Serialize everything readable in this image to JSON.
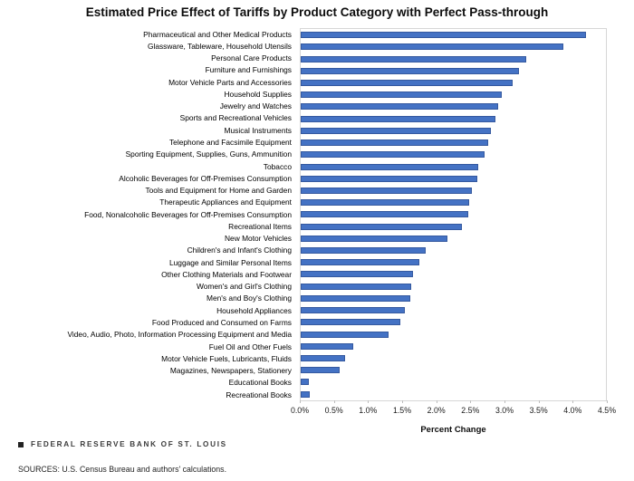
{
  "title": "Estimated Price Effect of Tariffs by Product Category with Perfect Pass-through",
  "chart_data": {
    "type": "bar",
    "orientation": "horizontal",
    "categories": [
      "Pharmaceutical and Other Medical Products",
      "Glassware, Tableware, Household Utensils",
      "Personal Care Products",
      "Furniture and Furnishings",
      "Motor Vehicle Parts and Accessories",
      "Household Supplies",
      "Jewelry and Watches",
      "Sports and Recreational Vehicles",
      "Musical Instruments",
      "Telephone and Facsimile Equipment",
      "Sporting Equipment, Supplies, Guns, Ammunition",
      "Tobacco",
      "Alcoholic Beverages for Off-Premises Consumption",
      "Tools and Equipment for Home and Garden",
      "Therapeutic Appliances and Equipment",
      "Food, Nonalcoholic Beverages for Off-Premises Consumption",
      "Recreational Items",
      "New Motor Vehicles",
      "Children's and Infant's Clothing",
      "Luggage and Similar Personal Items",
      "Other Clothing Materials and Footwear",
      "Women's and Girl's Clothing",
      "Men's and Boy's Clothing",
      "Household Appliances",
      "Food Produced and Consumed on Farms",
      "Video, Audio, Photo, Information Processing Equipment and Media",
      "Fuel Oil and Other Fuels",
      "Motor Vehicle Fuels, Lubricants, Fluids",
      "Magazines, Newspapers, Stationery",
      "Educational Books",
      "Recreational Books"
    ],
    "values": [
      4.2,
      3.87,
      3.32,
      3.22,
      3.12,
      2.96,
      2.91,
      2.87,
      2.8,
      2.76,
      2.71,
      2.62,
      2.61,
      2.52,
      2.48,
      2.47,
      2.38,
      2.16,
      1.84,
      1.75,
      1.66,
      1.63,
      1.61,
      1.53,
      1.47,
      1.29,
      0.78,
      0.65,
      0.58,
      0.12,
      0.13
    ],
    "title": "Estimated Price Effect of Tariffs by Product Category with Perfect Pass-through",
    "xlabel": "Percent Change",
    "ylabel": "",
    "xlim": [
      0,
      4.5
    ],
    "x_ticks": [
      "0.0%",
      "0.5%",
      "1.0%",
      "1.5%",
      "2.0%",
      "2.5%",
      "3.0%",
      "3.5%",
      "4.0%",
      "4.5%"
    ],
    "grid": false,
    "legend": false,
    "bar_color": "#4472C4",
    "bar_border_color": "#35599f",
    "plot_border_color": "#d6d6d6"
  },
  "footer": {
    "brand_square_icon": "black-square",
    "brand": "FEDERAL RESERVE BANK OF ST. LOUIS",
    "sources": "SOURCES: U.S. Census Bureau and authors' calculations."
  }
}
